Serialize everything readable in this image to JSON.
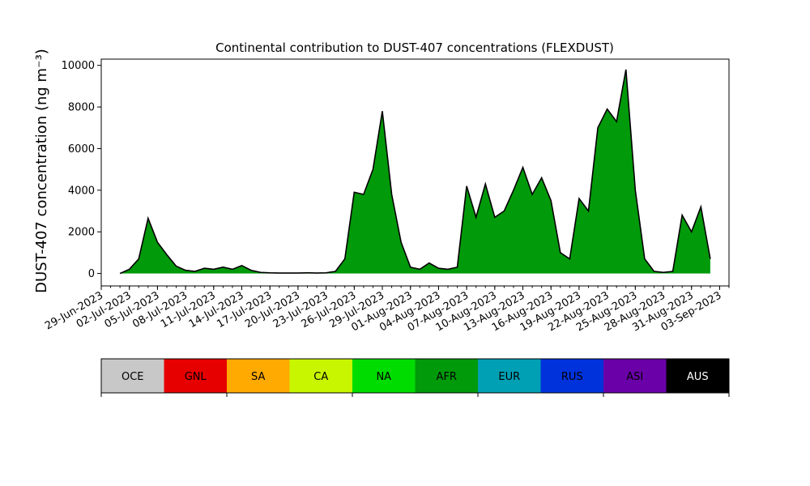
{
  "chart_data": {
    "type": "area",
    "title": "Continental contribution to DUST-407 concentrations (FLEXDUST)",
    "ylabel": "DUST-407 concentration (ng m⁻³)",
    "xlabel": "",
    "x_start_date": "2023-07-01",
    "x_step_days": 0.5,
    "ylim": [
      -600,
      10300
    ],
    "xlim_dates": [
      "2023-06-29",
      "2023-09-04"
    ],
    "yticks": [
      0,
      2000,
      4000,
      6000,
      8000,
      10000
    ],
    "xticks": [
      "29-Jun-2023",
      "02-Jul-2023",
      "05-Jul-2023",
      "08-Jul-2023",
      "11-Jul-2023",
      "14-Jul-2023",
      "17-Jul-2023",
      "20-Jul-2023",
      "23-Jul-2023",
      "26-Jul-2023",
      "29-Jul-2023",
      "01-Aug-2023",
      "04-Aug-2023",
      "07-Aug-2023",
      "10-Aug-2023",
      "13-Aug-2023",
      "16-Aug-2023",
      "19-Aug-2023",
      "22-Aug-2023",
      "25-Aug-2023",
      "28-Aug-2023",
      "31-Aug-2023",
      "03-Sep-2023"
    ],
    "x": [
      "2023-07-01",
      "2023-07-02",
      "2023-07-03",
      "2023-07-04",
      "2023-07-05",
      "2023-07-06",
      "2023-07-07",
      "2023-07-08",
      "2023-07-09",
      "2023-07-10",
      "2023-07-11",
      "2023-07-12",
      "2023-07-13",
      "2023-07-14",
      "2023-07-15",
      "2023-07-16",
      "2023-07-17",
      "2023-07-18",
      "2023-07-19",
      "2023-07-20",
      "2023-07-21",
      "2023-07-22",
      "2023-07-23",
      "2023-07-24",
      "2023-07-25",
      "2023-07-26",
      "2023-07-27",
      "2023-07-28",
      "2023-07-29",
      "2023-07-30",
      "2023-07-31",
      "2023-08-01",
      "2023-08-02",
      "2023-08-03",
      "2023-08-04",
      "2023-08-05",
      "2023-08-06",
      "2023-08-07",
      "2023-08-08",
      "2023-08-09",
      "2023-08-10",
      "2023-08-11",
      "2023-08-12",
      "2023-08-13",
      "2023-08-14",
      "2023-08-15",
      "2023-08-16",
      "2023-08-17",
      "2023-08-18",
      "2023-08-19",
      "2023-08-20",
      "2023-08-21",
      "2023-08-22",
      "2023-08-23",
      "2023-08-24",
      "2023-08-25",
      "2023-08-26",
      "2023-08-27",
      "2023-08-28",
      "2023-08-29",
      "2023-08-30",
      "2023-08-31",
      "2023-09-01",
      "2023-09-02"
    ],
    "series": [
      {
        "name": "AFR",
        "color": "#009a0a",
        "values": [
          0,
          200,
          700,
          2650,
          1500,
          900,
          350,
          150,
          100,
          250,
          200,
          300,
          200,
          380,
          150,
          50,
          30,
          20,
          20,
          20,
          30,
          20,
          30,
          100,
          700,
          3900,
          3800,
          5000,
          7800,
          3800,
          1500,
          300,
          200,
          500,
          250,
          200,
          300,
          4200,
          2700,
          4300,
          2700,
          3000,
          4000,
          5100,
          3800,
          4600,
          3500,
          1000,
          700,
          3600,
          3000,
          7000,
          7900,
          7300,
          9800,
          4000,
          700,
          100,
          50,
          100,
          2800,
          2000,
          3200,
          700
        ]
      },
      {
        "name": "ASI",
        "color": "#6a00a8",
        "values": [
          0,
          0,
          0,
          0,
          0,
          0,
          0,
          0,
          0,
          0,
          0,
          0,
          0,
          0,
          0,
          0,
          0,
          0,
          0,
          0,
          0,
          0,
          0,
          0,
          0,
          0,
          0,
          0,
          0,
          0,
          0,
          0,
          0,
          0,
          0,
          0,
          0,
          0,
          0,
          0,
          0,
          0,
          0,
          0,
          0,
          0,
          0,
          0,
          0,
          0,
          0,
          0,
          0,
          0,
          0,
          0,
          0,
          0,
          0,
          0,
          0,
          0,
          0,
          0
        ]
      }
    ],
    "legend": {
      "placement": "bottom",
      "entries": [
        {
          "label": "OCE",
          "color": "#c8c8c8",
          "text_color": "#000000"
        },
        {
          "label": "GNL",
          "color": "#e60000",
          "text_color": "#000000"
        },
        {
          "label": "SA",
          "color": "#ffaa00",
          "text_color": "#000000"
        },
        {
          "label": "CA",
          "color": "#c8f500",
          "text_color": "#000000"
        },
        {
          "label": "NA",
          "color": "#00dc00",
          "text_color": "#000000"
        },
        {
          "label": "AFR",
          "color": "#009a0a",
          "text_color": "#000000"
        },
        {
          "label": "EUR",
          "color": "#00a0b4",
          "text_color": "#000000"
        },
        {
          "label": "RUS",
          "color": "#0032dc",
          "text_color": "#000000"
        },
        {
          "label": "ASI",
          "color": "#6a00a8",
          "text_color": "#000000"
        },
        {
          "label": "AUS",
          "color": "#000000",
          "text_color": "#ffffff"
        }
      ]
    },
    "grid": false
  }
}
